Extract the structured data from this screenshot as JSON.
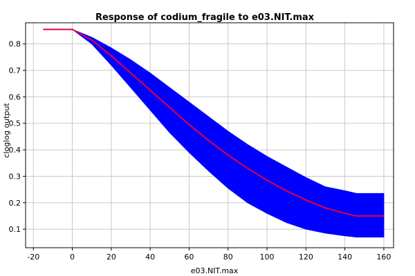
{
  "chart_data": {
    "type": "area",
    "title": "Response of codium_fragile to e03.NIT.max",
    "xlabel": "e03.NIT.max",
    "ylabel": "cloglog output",
    "xlim": [
      -24,
      165
    ],
    "ylim": [
      0.03,
      0.88
    ],
    "xticks": [
      -20,
      0,
      20,
      40,
      60,
      80,
      100,
      120,
      140,
      160
    ],
    "yticks": [
      0.1,
      0.2,
      0.3,
      0.4,
      0.5,
      0.6,
      0.7,
      0.8
    ],
    "grid": true,
    "legend": "none",
    "series": [
      {
        "role": "mean",
        "color": "#e8003c",
        "x": [
          -15,
          0,
          10,
          20,
          30,
          40,
          50,
          60,
          70,
          80,
          90,
          100,
          110,
          120,
          130,
          140,
          146,
          160
        ],
        "y": [
          0.855,
          0.855,
          0.815,
          0.755,
          0.69,
          0.625,
          0.56,
          0.495,
          0.435,
          0.38,
          0.33,
          0.285,
          0.245,
          0.21,
          0.18,
          0.16,
          0.15,
          0.15
        ]
      },
      {
        "role": "upper",
        "color": "#0000ff",
        "x": [
          -15,
          0,
          10,
          20,
          30,
          40,
          50,
          60,
          70,
          80,
          90,
          100,
          110,
          120,
          130,
          140,
          146,
          160
        ],
        "y": [
          0.855,
          0.855,
          0.825,
          0.785,
          0.74,
          0.69,
          0.635,
          0.58,
          0.525,
          0.47,
          0.42,
          0.375,
          0.335,
          0.295,
          0.26,
          0.245,
          0.235,
          0.235
        ]
      },
      {
        "role": "lower",
        "color": "#0000ff",
        "x": [
          -15,
          0,
          10,
          20,
          30,
          40,
          50,
          60,
          70,
          80,
          90,
          100,
          110,
          120,
          130,
          140,
          146,
          160
        ],
        "y": [
          0.855,
          0.855,
          0.8,
          0.72,
          0.635,
          0.55,
          0.465,
          0.39,
          0.32,
          0.255,
          0.2,
          0.16,
          0.125,
          0.1,
          0.085,
          0.075,
          0.07,
          0.07
        ]
      }
    ]
  }
}
